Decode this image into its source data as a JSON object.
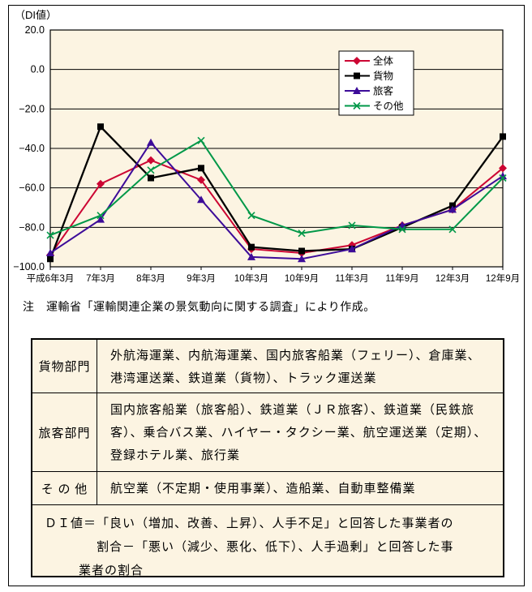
{
  "colors": {
    "cream": "#fcf4e2",
    "frame": "#000000"
  },
  "chart": {
    "y_axis_unit": "（DI値）"
  },
  "chart_data": {
    "type": "line",
    "title": "",
    "xlabel": "",
    "ylabel": "（DI値）",
    "categories": [
      "平成6年3月",
      "7年3月",
      "8年3月",
      "9年3月",
      "10年3月",
      "10年9月",
      "11年3月",
      "11年9月",
      "12年3月",
      "12年9月"
    ],
    "series": [
      {
        "id": "zentai",
        "name": "全体",
        "color": "#cc0633",
        "marker": "diamond",
        "values": [
          -94,
          -58,
          -46,
          -56,
          -91,
          -93,
          -89,
          -79,
          -71,
          -50
        ]
      },
      {
        "id": "kamotsu",
        "name": "貨物",
        "color": "#000000",
        "marker": "square",
        "values": [
          -96,
          -29,
          -55,
          -50,
          -90,
          -92,
          -91,
          -80,
          -69,
          -34
        ]
      },
      {
        "id": "ryokaku",
        "name": "旅客",
        "color": "#3d0c99",
        "marker": "triangle",
        "values": [
          -93,
          -76,
          -37,
          -66,
          -95,
          -96,
          -91,
          -79,
          -71,
          -54
        ]
      },
      {
        "id": "sonota",
        "name": "その他",
        "color": "#009848",
        "marker": "x",
        "values": [
          -84,
          -74,
          -51,
          -36,
          -74,
          -83,
          -79,
          -81,
          -81,
          -55
        ]
      }
    ],
    "ylim": [
      -100,
      20
    ],
    "ytick_interval": 20,
    "yticks": [
      "20.0",
      "0.0",
      "−20.0",
      "−40.0",
      "−60.0",
      "−80.0",
      "−100.0"
    ],
    "grid": true,
    "legend_position": "top-right",
    "plot_bg": "#fcf4e2"
  },
  "note": "注　運輸省「運輸関連企業の景気動向に関する調査」により作成。",
  "table": {
    "rows": [
      {
        "header": "貨物部門",
        "body": "外航海運業、内航海運業、国内旅客船業（フェリー）、倉庫業、港湾運送業、鉄道業（貨物）、トラック運送業"
      },
      {
        "header": "旅客部門",
        "body": "国内旅客船業（旅客船）、鉄道業（ＪＲ旅客）、鉄道業（民鉄旅客）、乗合バス業、ハイヤー・タクシー業、航空運送業（定期）、登録ホテル業、旅行業"
      },
      {
        "header": "そ の 他",
        "body": "航空業（不定期・使用事業）、造船業、自動車整備業"
      }
    ],
    "di_definition": {
      "line1": "ＤＩ値＝「良い（増加、改善、上昇）、人手不足」と回答した事業者の",
      "line2": "割合－「悪い（減少、悪化、低下）、人手過剰」と回答した事",
      "line3": "業者の割合"
    }
  }
}
